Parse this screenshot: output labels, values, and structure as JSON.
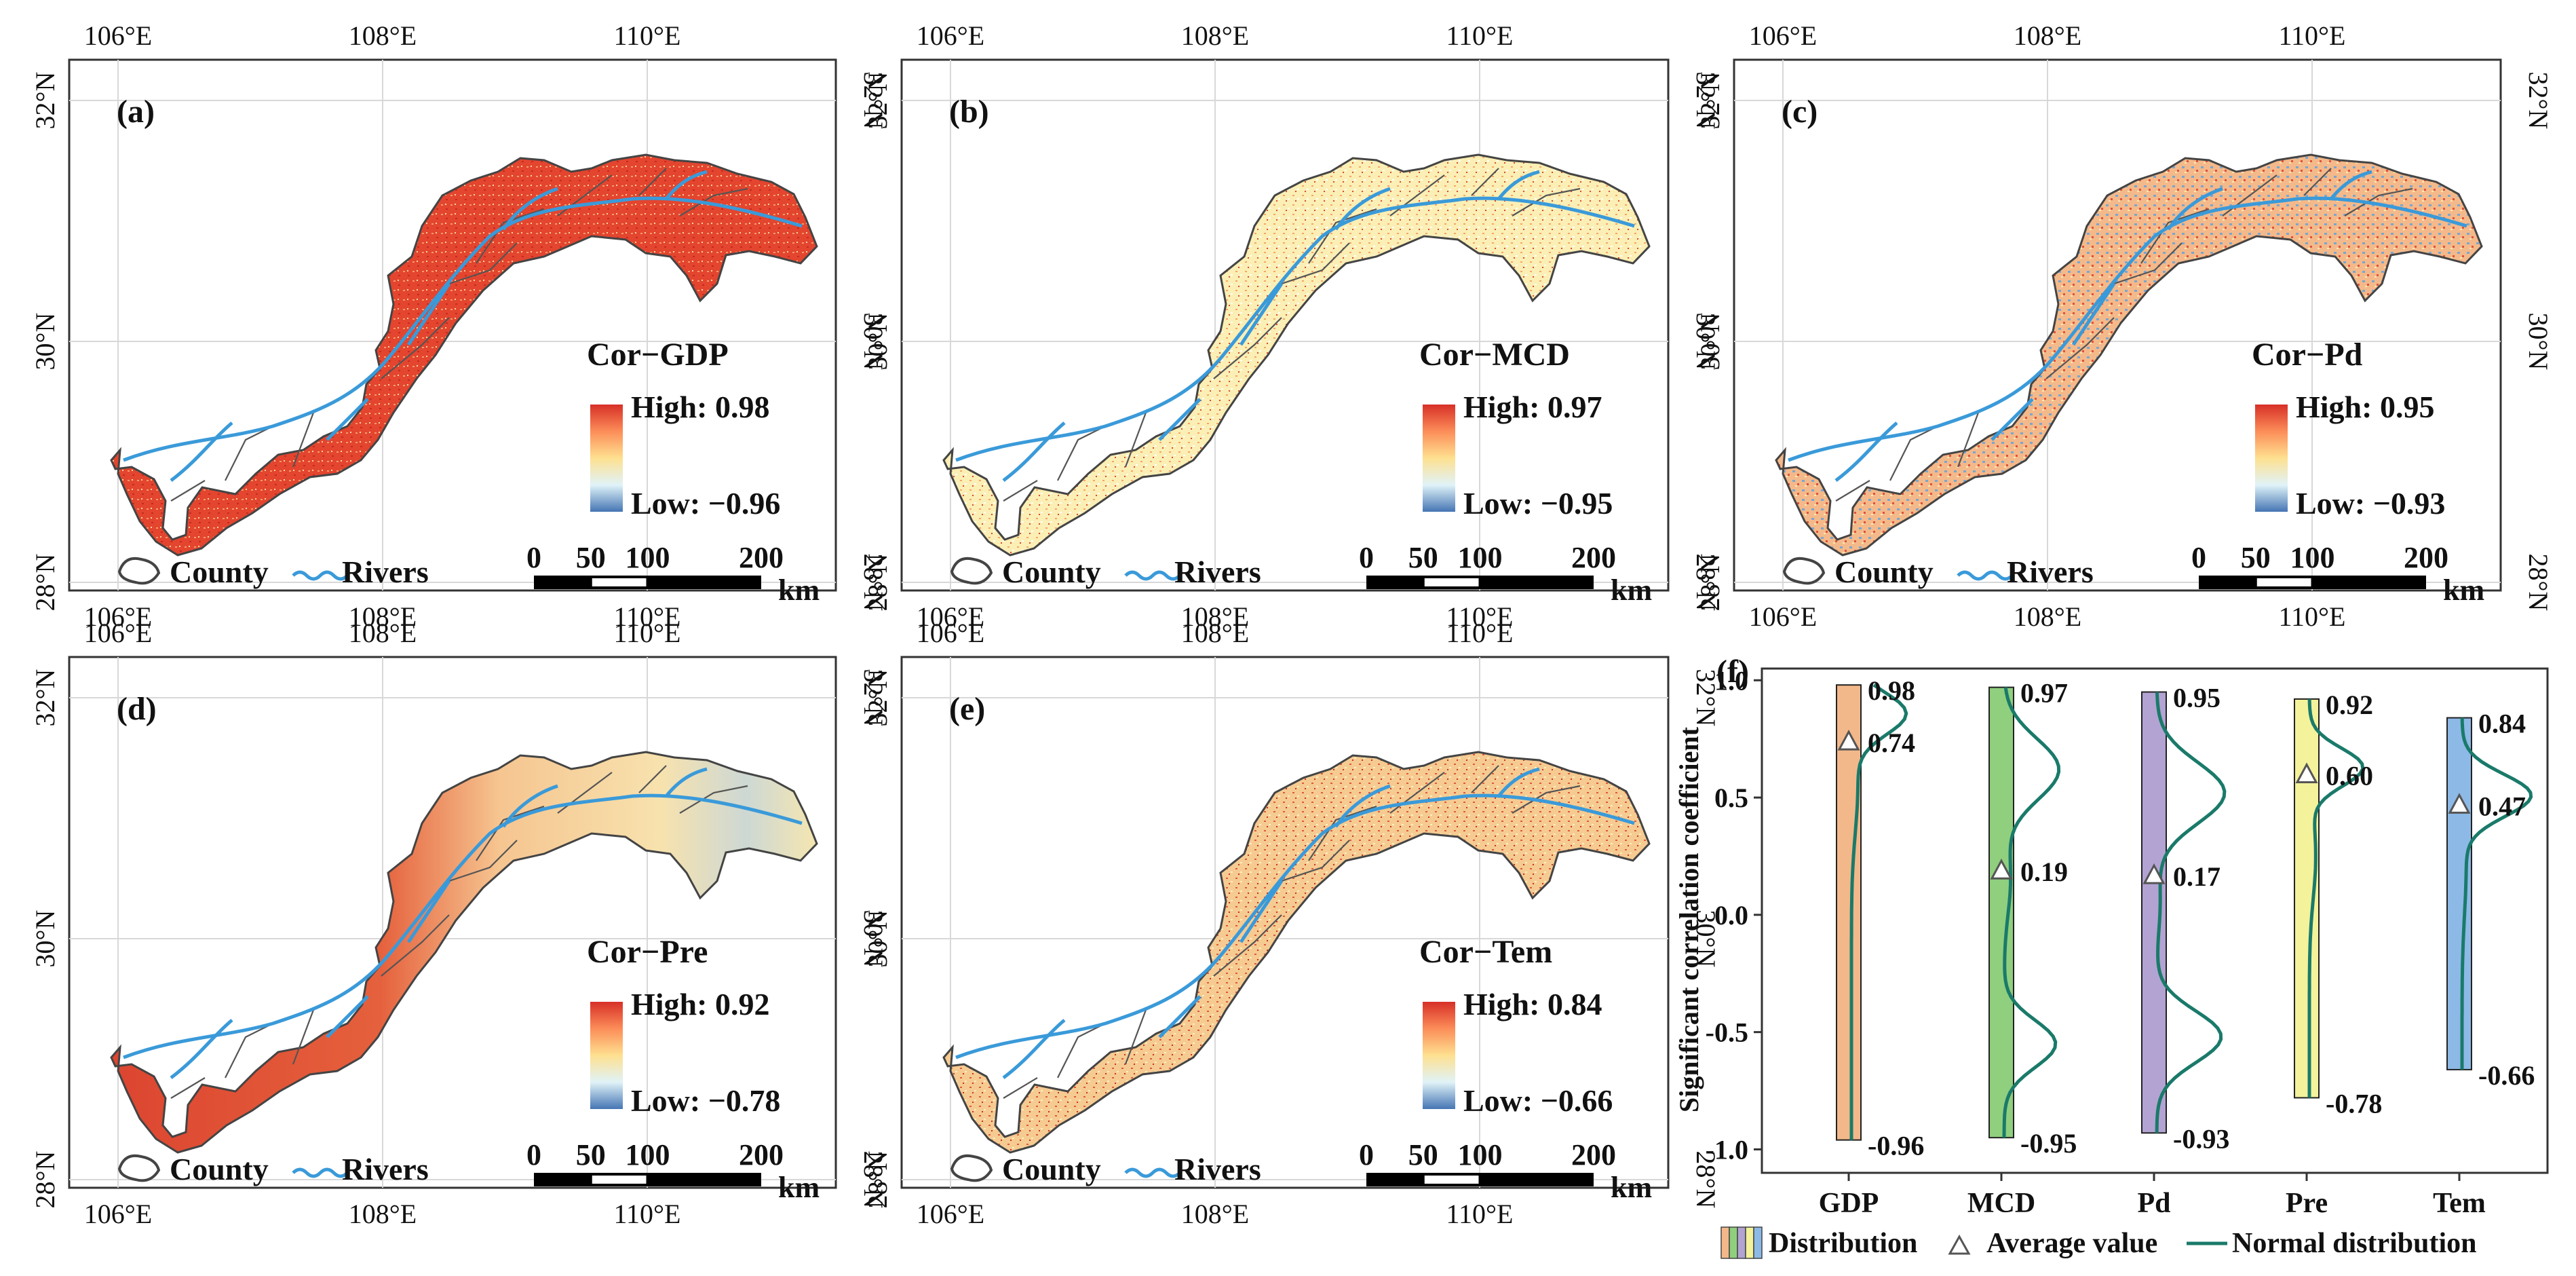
{
  "chart_data": [
    {
      "id": "a",
      "type": "map",
      "panel_label": "(a)",
      "legend_title": "Cor−GDP",
      "high_label": "High: 0.98",
      "low_label": "Low: −0.96",
      "high": 0.98,
      "low": -0.96,
      "palette": "red"
    },
    {
      "id": "b",
      "type": "map",
      "panel_label": "(b)",
      "legend_title": "Cor−MCD",
      "high_label": "High: 0.97",
      "low_label": "Low: −0.95",
      "high": 0.97,
      "low": -0.95,
      "palette": "pale"
    },
    {
      "id": "c",
      "type": "map",
      "panel_label": "(c)",
      "legend_title": "Cor−Pd",
      "high_label": "High: 0.95",
      "low_label": "Low: −0.93",
      "high": 0.95,
      "low": -0.93,
      "palette": "mixed"
    },
    {
      "id": "d",
      "type": "map",
      "panel_label": "(d)",
      "legend_title": "Cor−Pre",
      "high_label": "High: 0.92",
      "low_label": "Low: −0.78",
      "high": 0.92,
      "low": -0.78,
      "palette": "gradient"
    },
    {
      "id": "e",
      "type": "map",
      "panel_label": "(e)",
      "legend_title": "Cor−Tem",
      "high_label": "High: 0.84",
      "low_label": "Low: −0.66",
      "high": 0.84,
      "low": -0.66,
      "palette": "warm"
    },
    {
      "id": "f",
      "type": "violin",
      "panel_label": "(f)",
      "ylabel": "Significant correlation coefficient",
      "ylim": [
        -1.1,
        1.05
      ],
      "yticks": [
        -1.0,
        -0.5,
        0.0,
        0.5,
        1.0
      ],
      "ytick_labels": [
        "-1.0",
        "-0.5",
        "0.0",
        "0.5",
        "1.0"
      ],
      "categories": [
        "GDP",
        "MCD",
        "Pd",
        "Pre",
        "Tem"
      ],
      "series": [
        {
          "name": "GDP",
          "max": 0.98,
          "min": -0.96,
          "mean": 0.74,
          "color": "#f3b88a",
          "max_label": "0.98",
          "min_label": "-0.96",
          "mean_label": "0.74"
        },
        {
          "name": "MCD",
          "max": 0.97,
          "min": -0.95,
          "mean": 0.19,
          "color": "#8fcf7e",
          "max_label": "0.97",
          "min_label": "-0.95",
          "mean_label": "0.19"
        },
        {
          "name": "Pd",
          "max": 0.95,
          "min": -0.93,
          "mean": 0.17,
          "color": "#b3a3d2",
          "max_label": "0.95",
          "min_label": "-0.93",
          "mean_label": "0.17"
        },
        {
          "name": "Pre",
          "max": 0.92,
          "min": -0.78,
          "mean": 0.6,
          "color": "#f4f29b",
          "max_label": "0.92",
          "min_label": "-0.78",
          "mean_label": "0.60"
        },
        {
          "name": "Tem",
          "max": 0.84,
          "min": -0.66,
          "mean": 0.47,
          "color": "#8db9e6",
          "max_label": "0.84",
          "min_label": "-0.66",
          "mean_label": "0.47"
        }
      ],
      "legend": {
        "distribution": "Distribution",
        "average": "Average value",
        "normal": "Normal distribution"
      }
    }
  ],
  "map_common": {
    "x_ticks": [
      "106°E",
      "108°E",
      "110°E"
    ],
    "y_ticks": [
      "32°N",
      "30°N",
      "28°N"
    ],
    "county_label": "County",
    "rivers_label": "Rivers",
    "scale_ticks": [
      "0",
      "50",
      "100",
      "200"
    ],
    "scale_unit": "km"
  },
  "colors": {
    "high": "#d73027",
    "mid": "#fee090",
    "low": "#4575b4",
    "river": "#3a9ad9",
    "curve": "#1a7a6a"
  }
}
